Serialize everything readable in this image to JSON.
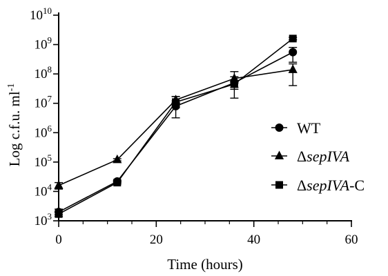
{
  "chart_data": {
    "type": "line",
    "xlabel": "Time (hours)",
    "ylabel": "Log c.f.u. ml-1",
    "ylabel_parts": {
      "base": "Log c.f.u. ml",
      "sup": "-1"
    },
    "xlim": [
      0,
      60
    ],
    "x_ticks": [
      0,
      20,
      40,
      60
    ],
    "x_tick_labels": [
      "0",
      "20",
      "40",
      "60"
    ],
    "y_scale": "log",
    "ylim": [
      1000,
      10000000000
    ],
    "y_ticks": [
      1000,
      10000,
      100000,
      1000000,
      10000000,
      100000000,
      1000000000,
      10000000000
    ],
    "y_tick_labels": [
      {
        "base": "10",
        "exp": "3"
      },
      {
        "base": "10",
        "exp": "4"
      },
      {
        "base": "10",
        "exp": "5"
      },
      {
        "base": "10",
        "exp": "6"
      },
      {
        "base": "10",
        "exp": "7"
      },
      {
        "base": "10",
        "exp": "8"
      },
      {
        "base": "10",
        "exp": "9"
      },
      {
        "base": "10",
        "exp": "10"
      }
    ],
    "grid": false,
    "legend_position": "right",
    "series": [
      {
        "name": "WT",
        "name_parts": [
          {
            "text": "WT",
            "italic": false
          }
        ],
        "marker": "circle",
        "x": [
          0,
          12,
          24,
          36,
          48
        ],
        "y": [
          2000,
          22000,
          8000000,
          50000000,
          550000000
        ],
        "err_low": [
          1600,
          20000,
          3200000,
          30000000,
          250000000
        ],
        "err_high": [
          2500,
          24000,
          12000000,
          80000000,
          800000000
        ]
      },
      {
        "name": "ΔsepIVA",
        "name_parts": [
          {
            "text": "Δ",
            "italic": false
          },
          {
            "text": "sepIVA",
            "italic": true
          }
        ],
        "marker": "triangle",
        "x": [
          0,
          12,
          24,
          36,
          48
        ],
        "y": [
          16000,
          120000,
          13000000,
          70000000,
          140000000
        ],
        "err_low": [
          12000,
          110000,
          10000000,
          15000000,
          40000000
        ],
        "err_high": [
          20000,
          130000,
          17000000,
          120000000,
          220000000
        ]
      },
      {
        "name": "ΔsepIVA-C",
        "name_parts": [
          {
            "text": "Δ",
            "italic": false
          },
          {
            "text": "sepIVA",
            "italic": true
          },
          {
            "text": "-C",
            "italic": false
          }
        ],
        "marker": "square",
        "x": [
          0,
          12,
          24,
          36,
          48
        ],
        "y": [
          1700,
          20000,
          11000000,
          45000000,
          1600000000
        ],
        "err_low": [
          1400,
          18000,
          7000000,
          35000000,
          1450000000
        ],
        "err_high": [
          2000,
          22000,
          17000000,
          55000000,
          1750000000
        ]
      }
    ]
  }
}
